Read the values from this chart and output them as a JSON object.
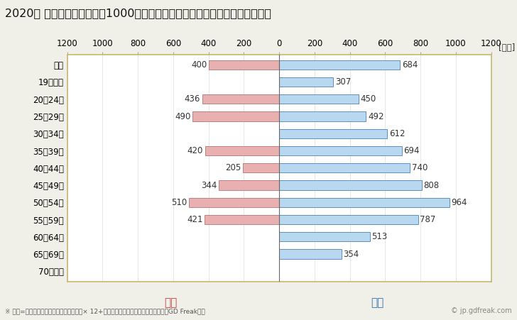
{
  "title": "2020年 民間企業（従業者数1000人以上）フルタイム労働者の男女別平均年収",
  "unit_label": "[万円]",
  "categories": [
    "全体",
    "19歳以下",
    "20〜24歳",
    "25〜29歳",
    "30〜34歳",
    "35〜39歳",
    "40〜44歳",
    "45〜49歳",
    "50〜54歳",
    "55〜59歳",
    "60〜64歳",
    "65〜69歳",
    "70歳以上"
  ],
  "female_values": [
    400,
    0,
    436,
    490,
    0,
    420,
    205,
    344,
    510,
    421,
    0,
    0,
    0
  ],
  "male_values": [
    684,
    307,
    450,
    492,
    612,
    694,
    740,
    808,
    964,
    787,
    513,
    354,
    0
  ],
  "female_color": "#e8b0b0",
  "male_color": "#b8d8f0",
  "female_edge_color": "#c08080",
  "male_edge_color": "#6090c0",
  "female_label": "女性",
  "male_label": "男性",
  "female_label_color": "#c04040",
  "male_label_color": "#3070b0",
  "xlim": 1200,
  "background_color": "#f0f0e8",
  "plot_bg_color": "#ffffff",
  "footnote": "※ 年収=「きまって支給する現金給与額」× 12+「年間賞与その他特別給与額」としてGD Freak推計",
  "watermark": "© jp.gdfreak.com",
  "border_color": "#c8b870",
  "title_fontsize": 11.5,
  "axis_fontsize": 8.5,
  "label_fontsize": 8.5,
  "bar_height": 0.55,
  "legend_fontsize": 11
}
